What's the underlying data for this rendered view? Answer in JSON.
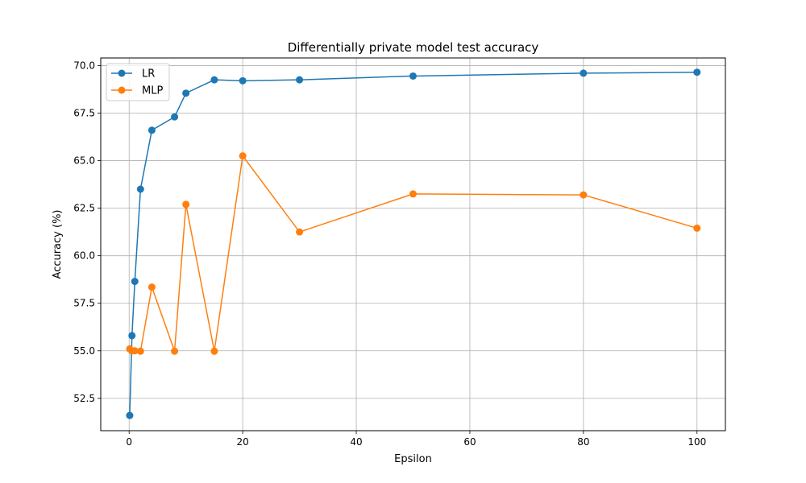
{
  "chart_data": {
    "type": "line",
    "title": "Differentially private model test accuracy",
    "xlabel": "Epsilon",
    "ylabel": "Accuracy (%)",
    "xlim": [
      -5,
      105
    ],
    "ylim": [
      50.8,
      70.4
    ],
    "xticks": [
      0,
      20,
      40,
      60,
      80,
      100
    ],
    "xtick_labels": [
      "0",
      "20",
      "40",
      "60",
      "80",
      "100"
    ],
    "yticks": [
      52.5,
      55.0,
      57.5,
      60.0,
      62.5,
      65.0,
      67.5,
      70.0
    ],
    "ytick_labels": [
      "52.5",
      "55.0",
      "57.5",
      "60.0",
      "62.5",
      "65.0",
      "67.5",
      "70.0"
    ],
    "grid": true,
    "legend_position": "top-left",
    "series": [
      {
        "name": "LR",
        "color": "#1f77b4",
        "x": [
          0.1,
          0.5,
          1,
          2,
          4,
          8,
          10,
          15,
          20,
          30,
          50,
          80,
          100
        ],
        "y": [
          51.6,
          55.8,
          58.65,
          63.5,
          66.6,
          67.3,
          68.55,
          69.25,
          69.2,
          69.25,
          69.45,
          69.6,
          69.65
        ]
      },
      {
        "name": "MLP",
        "color": "#ff7f0e",
        "x": [
          0.1,
          0.5,
          1,
          2,
          4,
          8,
          10,
          15,
          20,
          30,
          50,
          80,
          100
        ],
        "y": [
          55.1,
          55.0,
          55.0,
          54.98,
          58.35,
          54.98,
          62.7,
          54.98,
          65.25,
          61.25,
          63.25,
          63.2,
          61.45
        ]
      }
    ]
  }
}
